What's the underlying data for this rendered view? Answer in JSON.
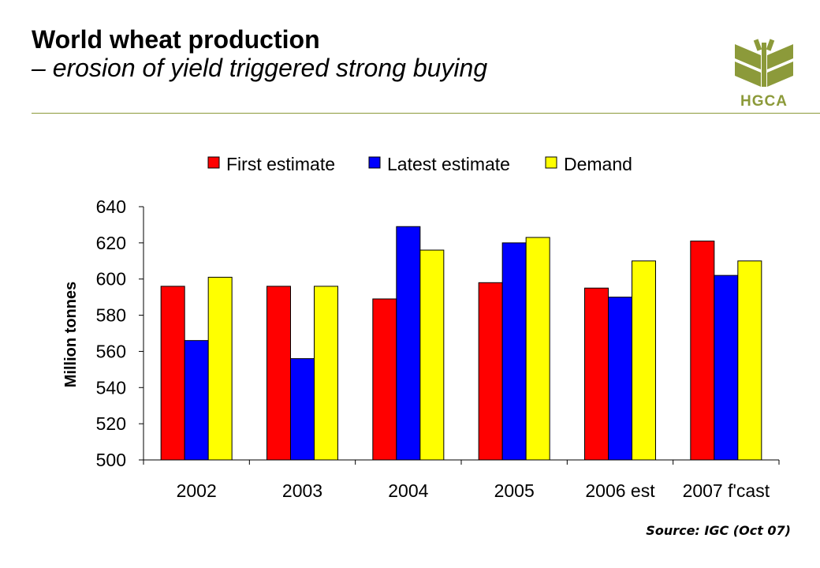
{
  "slide": {
    "title": "World wheat production",
    "subtitle": "– erosion of yield triggered strong buying",
    "logo_text": "HGCA",
    "source": "Source: IGC (Oct 07)"
  },
  "colors": {
    "logo": "#8c9a3a",
    "first_estimate": "#ff0000",
    "latest_estimate": "#0000ff",
    "demand": "#ffff00"
  },
  "chart_data": {
    "type": "bar",
    "categories": [
      "2002",
      "2003",
      "2004",
      "2005",
      "2006 est",
      "2007 f'cast"
    ],
    "series": [
      {
        "name": "First estimate",
        "color": "#ff0000",
        "values": [
          596,
          596,
          589,
          598,
          595,
          621
        ]
      },
      {
        "name": "Latest estimate",
        "color": "#0000ff",
        "values": [
          566,
          556,
          629,
          620,
          590,
          602
        ]
      },
      {
        "name": "Demand",
        "color": "#ffff00",
        "values": [
          601,
          596,
          616,
          623,
          610,
          610
        ]
      }
    ],
    "ylabel": "Million tonnes",
    "ylim": [
      500,
      640
    ],
    "yticks": [
      500,
      520,
      540,
      560,
      580,
      600,
      620,
      640
    ],
    "legend": "top",
    "grid": false
  }
}
